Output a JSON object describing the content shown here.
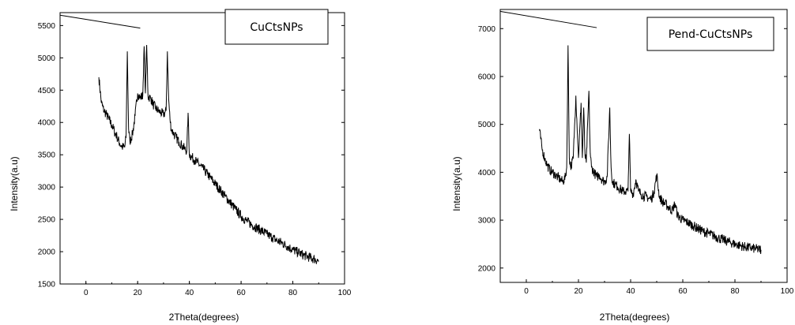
{
  "chart_data": [
    {
      "type": "line",
      "xlabel": "2Theta(degrees)",
      "ylabel": "Intensity(a.u)",
      "xlim": [
        -10,
        100
      ],
      "ylim": [
        1500,
        5700
      ],
      "xticks": [
        0,
        20,
        40,
        60,
        80,
        100
      ],
      "yticks": [
        1500,
        2000,
        2500,
        3000,
        3500,
        4000,
        4500,
        5000,
        5500
      ],
      "legend": "top-right",
      "series": [
        {
          "name": "CuCtsNPs",
          "color": "#000000",
          "x": [
            5,
            6,
            7,
            8,
            9,
            10,
            11,
            12,
            13,
            14,
            15,
            15.5,
            16,
            16.5,
            17,
            18,
            19,
            20,
            21,
            22,
            22.5,
            23,
            23.5,
            24,
            25,
            26,
            27,
            28,
            29,
            30,
            31,
            31.5,
            32,
            32.5,
            33,
            34,
            35,
            36,
            37,
            38,
            39,
            39.5,
            40,
            41,
            42,
            43,
            44,
            45,
            46,
            47,
            48,
            50,
            52,
            54,
            56,
            58,
            60,
            62,
            64,
            66,
            68,
            70,
            72,
            74,
            76,
            78,
            80,
            82,
            84,
            86,
            88,
            90
          ],
          "y": [
            4700,
            4300,
            4180,
            4120,
            4040,
            3960,
            3860,
            3780,
            3680,
            3620,
            3620,
            3760,
            5100,
            3900,
            3700,
            3820,
            4100,
            4450,
            4380,
            4420,
            5180,
            4450,
            5200,
            4400,
            4380,
            4280,
            4220,
            4180,
            4150,
            4120,
            4180,
            5100,
            4350,
            4050,
            3900,
            3820,
            3760,
            3700,
            3650,
            3600,
            3560,
            4150,
            3500,
            3460,
            3420,
            3380,
            3340,
            3300,
            3250,
            3200,
            3150,
            3050,
            2950,
            2850,
            2750,
            2650,
            2550,
            2480,
            2420,
            2370,
            2320,
            2270,
            2220,
            2170,
            2130,
            2080,
            2030,
            1990,
            1950,
            1920,
            1890,
            1860
          ]
        }
      ],
      "annotation": {
        "text": "CuCtsNPs",
        "line": {
          "x0": -10,
          "y0": 5660,
          "x1": 21,
          "y1": 5460
        }
      }
    },
    {
      "type": "line",
      "xlabel": "2Theta(degrees)",
      "ylabel": "Intensity(a.u)",
      "xlim": [
        -10,
        100
      ],
      "ylim": [
        1700,
        7400
      ],
      "xticks": [
        0,
        20,
        40,
        60,
        80,
        100
      ],
      "yticks": [
        2000,
        3000,
        4000,
        5000,
        6000,
        7000
      ],
      "legend": "top-right",
      "series": [
        {
          "name": "Pend-CuCtsNPs",
          "color": "#000000",
          "x": [
            5,
            6,
            7,
            8,
            9,
            10,
            11,
            12,
            13,
            14,
            15,
            15.5,
            16,
            16.5,
            17,
            18,
            19,
            20,
            21,
            21.5,
            22,
            22.5,
            23,
            24,
            24.5,
            25,
            26,
            27,
            28,
            29,
            30,
            31,
            32,
            32.5,
            33,
            34,
            35,
            36,
            37,
            38,
            39,
            39.5,
            40,
            41,
            42,
            43,
            44,
            45,
            46,
            47,
            48,
            49,
            50,
            51,
            52,
            54,
            56,
            57,
            58,
            60,
            62,
            64,
            66,
            68,
            70,
            72,
            74,
            76,
            78,
            80,
            82,
            84,
            86,
            88,
            90
          ],
          "y": [
            4900,
            4500,
            4300,
            4150,
            4050,
            4000,
            3950,
            3900,
            3850,
            3800,
            3900,
            4100,
            6650,
            4300,
            4100,
            4300,
            5600,
            4300,
            5450,
            4300,
            5350,
            4350,
            4200,
            5700,
            4400,
            4100,
            4000,
            3900,
            3950,
            3850,
            3800,
            3900,
            5350,
            4100,
            3800,
            3750,
            3700,
            3650,
            3600,
            3600,
            3600,
            4800,
            3600,
            3550,
            3850,
            3600,
            3550,
            3500,
            3500,
            3450,
            3450,
            3600,
            3950,
            3500,
            3400,
            3300,
            3200,
            3350,
            3100,
            3000,
            2950,
            2880,
            2820,
            2760,
            2720,
            2670,
            2620,
            2580,
            2540,
            2500,
            2470,
            2440,
            2420,
            2400,
            2380
          ]
        }
      ],
      "annotation": {
        "text": "Pend-CuCtsNPs",
        "line": {
          "x0": -10,
          "y0": 7360,
          "x1": 27,
          "y1": 7020
        }
      }
    }
  ]
}
